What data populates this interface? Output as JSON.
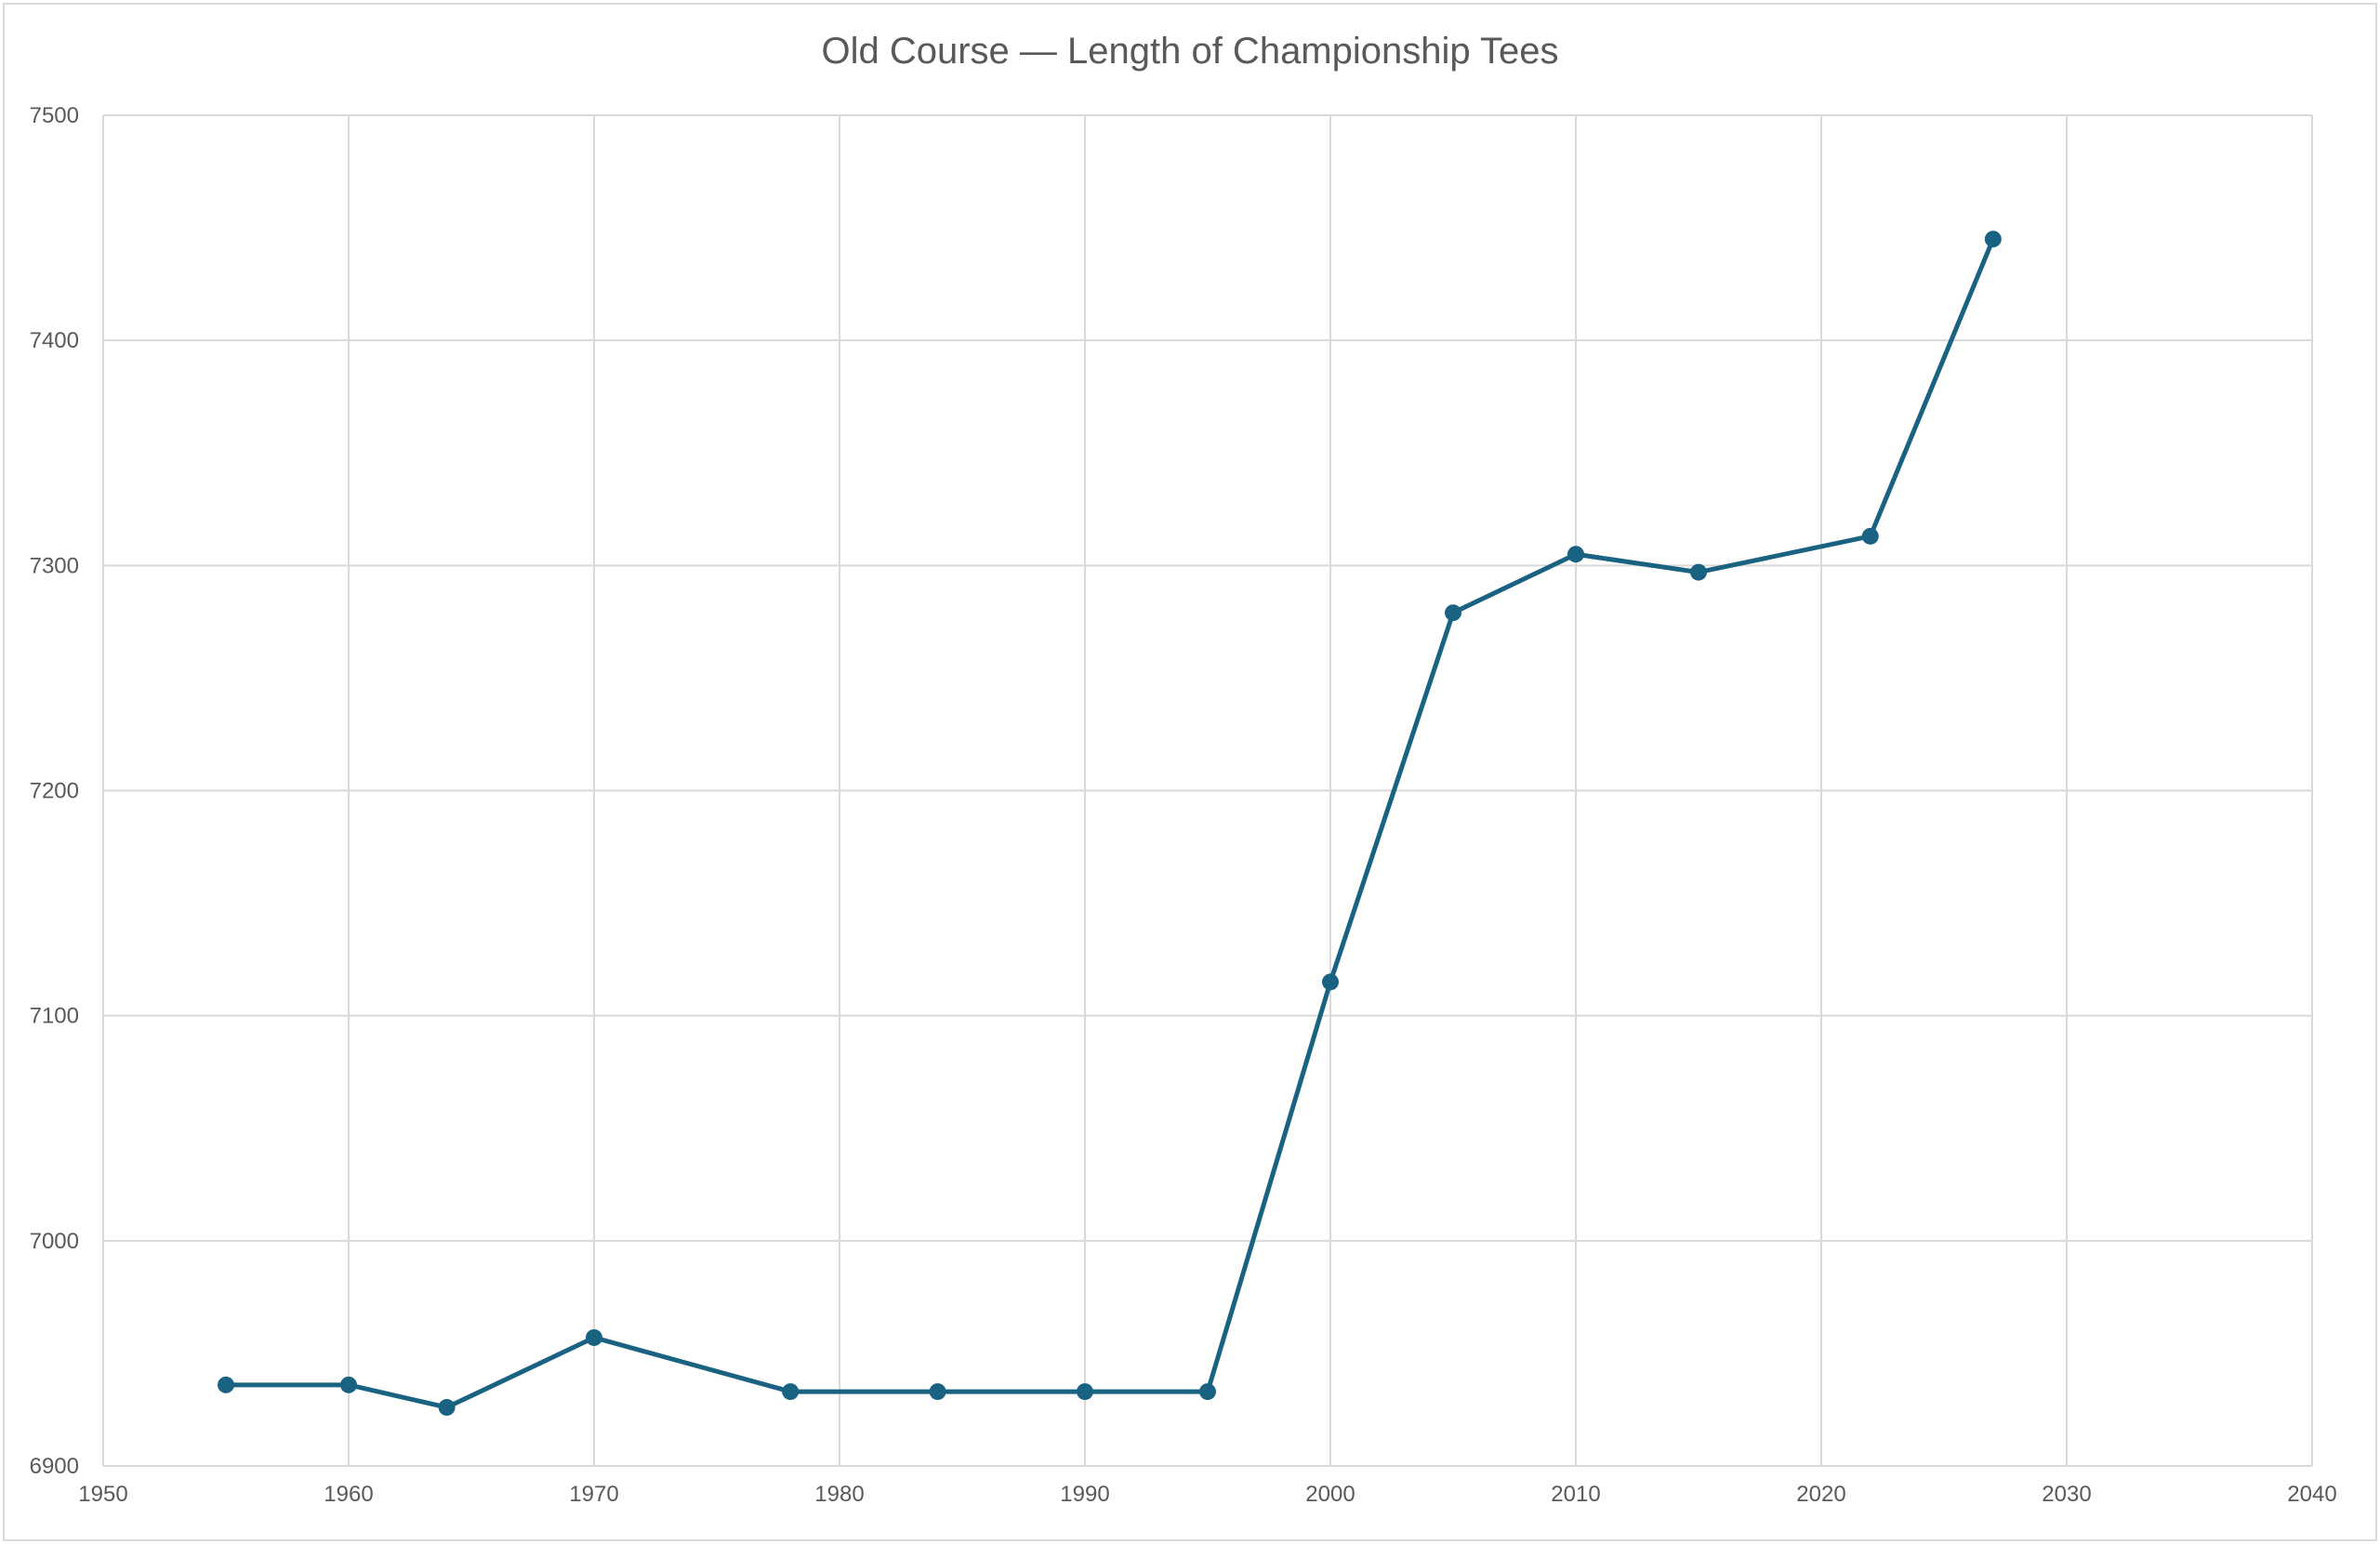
{
  "chart_data": {
    "type": "line",
    "title": "Old Course — Length of Championship Tees",
    "xlabel": "",
    "ylabel": "",
    "xlim": [
      1950,
      2040
    ],
    "ylim": [
      6900,
      7500
    ],
    "x_ticks": [
      1950,
      1960,
      1970,
      1980,
      1990,
      2000,
      2010,
      2020,
      2030,
      2040
    ],
    "y_ticks": [
      6900,
      7000,
      7100,
      7200,
      7300,
      7400,
      7500
    ],
    "grid": true,
    "legend": "none",
    "series": [
      {
        "color": "#1a6282",
        "marker": "circle",
        "x": [
          1955,
          1960,
          1964,
          1970,
          1978,
          1984,
          1990,
          1995,
          2000,
          2005,
          2010,
          2015,
          2022,
          2027
        ],
        "y": [
          6936,
          6936,
          6926,
          6957,
          6933,
          6933,
          6933,
          6933,
          7115,
          7279,
          7305,
          7297,
          7313,
          7445
        ]
      }
    ]
  }
}
